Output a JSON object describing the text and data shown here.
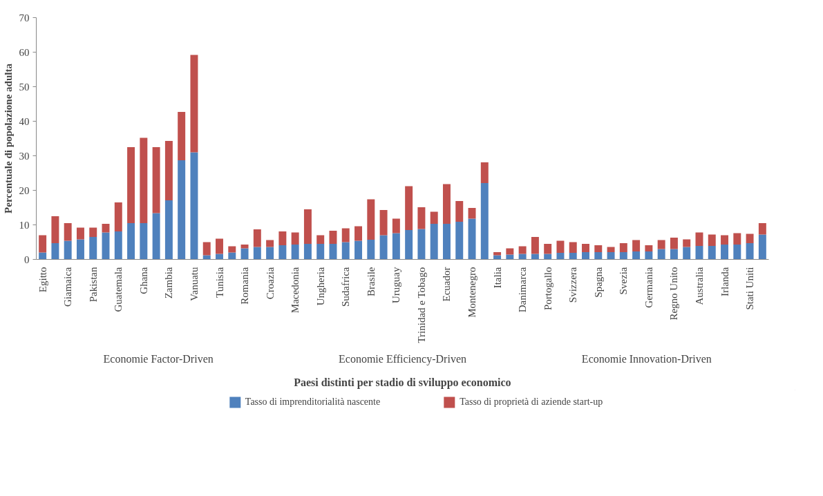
{
  "chart_data": {
    "type": "bar",
    "stacked": true,
    "xlabel": "Paesi distinti per stadio di sviluppo economico",
    "ylabel": "Percentuale di popolazione adulta",
    "categories": [
      "Egitto",
      null,
      "Giamaica",
      null,
      "Pakistan",
      null,
      "Guatemala",
      null,
      "Ghana",
      null,
      "Zambia",
      null,
      "Vanuatu",
      null,
      "Tunisia",
      null,
      "Romania",
      null,
      "Croazia",
      null,
      "Macedonia",
      null,
      "Ungheria",
      null,
      "Sudafrica",
      null,
      "Brasile",
      null,
      "Uruguay",
      null,
      "Trinidad e Tobago",
      null,
      "Ecuador",
      null,
      "Montenegro",
      null,
      "Italia",
      null,
      "Danimarca",
      null,
      "Portogallo",
      null,
      "Svizzera",
      null,
      "Spagna",
      null,
      "Svezia",
      null,
      "Germania",
      null,
      "Regno Unito",
      null,
      "Australia",
      null,
      "Irlanda",
      null,
      "Stati Uniti",
      null
    ],
    "series": [
      {
        "name": "Tasso di imprenditorialità nascente",
        "color": "#4f81bd",
        "values": [
          2.0,
          4.7,
          5.4,
          5.8,
          6.5,
          7.8,
          8.1,
          10.5,
          10.5,
          13.4,
          17.1,
          28.7,
          31.0,
          1.2,
          1.6,
          2.0,
          3.2,
          3.6,
          3.6,
          4.1,
          4.3,
          4.5,
          4.5,
          4.5,
          5.0,
          5.4,
          5.7,
          7.0,
          7.6,
          8.5,
          8.8,
          10.3,
          10.3,
          10.9,
          11.8,
          22.1,
          1.2,
          1.4,
          1.6,
          1.6,
          1.6,
          1.9,
          1.9,
          2.1,
          2.1,
          2.1,
          2.1,
          2.3,
          2.3,
          3.0,
          3.0,
          3.6,
          3.9,
          3.9,
          4.3,
          4.3,
          4.7,
          7.2
        ]
      },
      {
        "name": "Tasso di proprietà di aziende start-up",
        "color": "#c0504d",
        "values": [
          5.0,
          7.8,
          5.1,
          3.4,
          2.7,
          2.5,
          8.4,
          22.0,
          24.7,
          19.1,
          17.2,
          14.0,
          28.2,
          3.8,
          4.4,
          1.8,
          1.1,
          5.1,
          2.0,
          4.0,
          3.5,
          10.0,
          2.5,
          3.8,
          4.0,
          4.2,
          11.7,
          7.3,
          4.2,
          12.7,
          6.3,
          3.5,
          11.5,
          6.0,
          3.1,
          6.0,
          0.9,
          1.8,
          2.2,
          4.9,
          2.9,
          3.5,
          3.1,
          2.4,
          2.0,
          1.5,
          2.6,
          3.3,
          1.8,
          2.6,
          3.3,
          2.2,
          3.9,
          3.3,
          2.7,
          3.3,
          2.7,
          3.3
        ]
      }
    ],
    "annotations": [
      "Economie Factor-Driven",
      "Economie Efficiency-Driven",
      "Economie Innovation-Driven"
    ],
    "ylim": [
      0,
      70
    ],
    "yticks": [
      0,
      10,
      20,
      30,
      40,
      50,
      60,
      70
    ],
    "grid": false,
    "legend": "bottom"
  }
}
